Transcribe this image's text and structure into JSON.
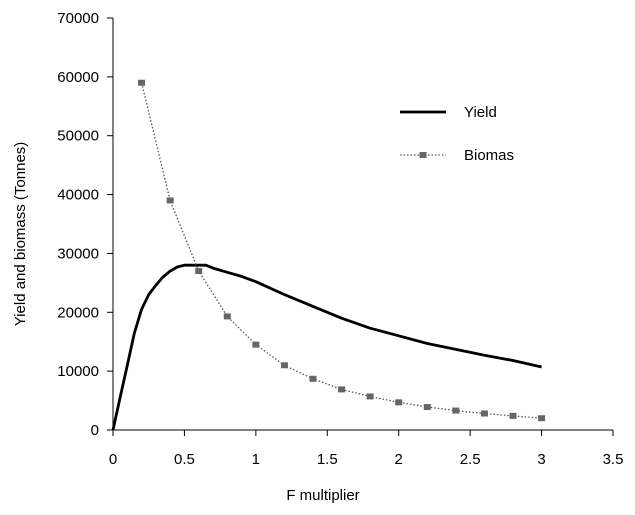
{
  "chart_data": {
    "type": "line",
    "title": "",
    "xlabel": "F multiplier",
    "ylabel": "Yield and biomass (Tonnes)",
    "xlim": [
      0,
      3.5
    ],
    "ylim": [
      0,
      70000
    ],
    "xticks": [
      0,
      0.5,
      1,
      1.5,
      2,
      2.5,
      3,
      3.5
    ],
    "yticks": [
      0,
      10000,
      20000,
      30000,
      40000,
      50000,
      60000,
      70000
    ],
    "xtick_labels": [
      "0",
      "0.5",
      "1",
      "1.5",
      "2",
      "2.5",
      "3",
      "3.5"
    ],
    "ytick_labels": [
      "0",
      "10000",
      "20000",
      "30000",
      "40000",
      "50000",
      "60000",
      "70000"
    ],
    "grid": false,
    "legend_position": "top-right",
    "series": [
      {
        "name": "Yield",
        "color": "#000000",
        "style": "solid",
        "marker": "none",
        "points": [
          [
            0,
            0
          ],
          [
            0.05,
            5500
          ],
          [
            0.1,
            11000
          ],
          [
            0.15,
            16500
          ],
          [
            0.2,
            20500
          ],
          [
            0.25,
            23000
          ],
          [
            0.3,
            24600
          ],
          [
            0.35,
            26000
          ],
          [
            0.4,
            27000
          ],
          [
            0.45,
            27700
          ],
          [
            0.5,
            28000
          ],
          [
            0.55,
            28000
          ],
          [
            0.6,
            28000
          ],
          [
            0.65,
            28000
          ],
          [
            0.7,
            27500
          ],
          [
            0.8,
            26800
          ],
          [
            0.9,
            26100
          ],
          [
            1.0,
            25200
          ],
          [
            1.2,
            23000
          ],
          [
            1.4,
            21000
          ],
          [
            1.6,
            19000
          ],
          [
            1.8,
            17300
          ],
          [
            2.0,
            16000
          ],
          [
            2.2,
            14700
          ],
          [
            2.4,
            13700
          ],
          [
            2.6,
            12700
          ],
          [
            2.8,
            11800
          ],
          [
            3.0,
            10700
          ]
        ]
      },
      {
        "name": "Biomas",
        "color": "#555555",
        "style": "dotted",
        "marker": "square",
        "points": [
          [
            0.2,
            59000
          ],
          [
            0.4,
            39000
          ],
          [
            0.6,
            27000
          ],
          [
            0.8,
            19300
          ],
          [
            1.0,
            14500
          ],
          [
            1.2,
            11000
          ],
          [
            1.4,
            8700
          ],
          [
            1.6,
            6900
          ],
          [
            1.8,
            5700
          ],
          [
            2.0,
            4700
          ],
          [
            2.2,
            3900
          ],
          [
            2.4,
            3300
          ],
          [
            2.6,
            2800
          ],
          [
            2.8,
            2400
          ],
          [
            3.0,
            2000
          ]
        ]
      }
    ]
  }
}
